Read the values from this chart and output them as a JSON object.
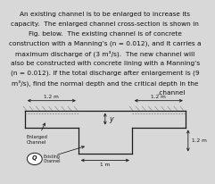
{
  "text_lines": [
    "An existing channel is to be enlarged to increase its",
    "capacity.  The enlarged channel cross-section is shown in",
    "Fig. below.  The existing channel is of concrete",
    "construction with a Manning’s (n = 0.012), and it carries a",
    "maximum discharge of (3 m³/s).  The new channel will",
    "also be constructed with concrete lining with a Manning’s",
    "(n = 0.012). If the total discharge after enlargement is (9",
    "m³/s), find the normal depth and the critical depth in the",
    ".channel"
  ],
  "bg_color": "#d8d8d8",
  "diagram_bg": "#f0f0f0",
  "line_color": "#1a1a1a",
  "text_color": "#111111",
  "label_1_2m_left": "1.2 m",
  "label_1_2m_right": "1.2 m",
  "label_1m": "1 m",
  "label_1_2m_side": "1.2 m",
  "label_y": "y",
  "label_enlarged": "Enlarged\nChannel",
  "label_existing_line1": "Existing",
  "label_existing_line2": "Channel",
  "font_size_text": 5.3,
  "font_size_label": 4.2
}
